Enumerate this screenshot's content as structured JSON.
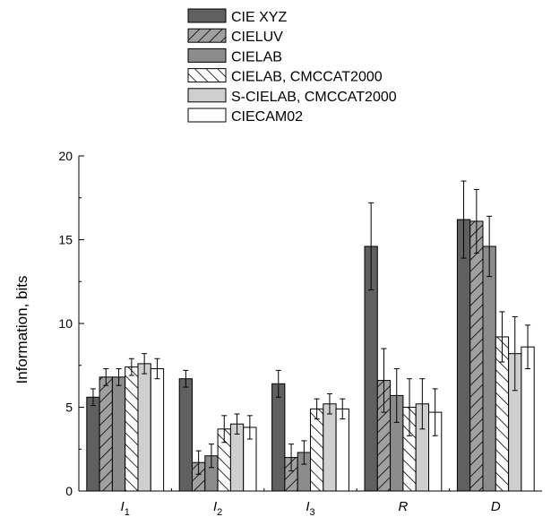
{
  "chart_data": {
    "type": "bar",
    "title": "",
    "xlabel": "",
    "ylabel": "Information, bits",
    "ylim": [
      0,
      20
    ],
    "yticks": [
      0,
      5,
      10,
      15,
      20
    ],
    "grid": false,
    "legend_position": "top-center",
    "categories": [
      {
        "main": "I",
        "sub": "1"
      },
      {
        "main": "I",
        "sub": "2"
      },
      {
        "main": "I",
        "sub": "3"
      },
      {
        "main": "R",
        "sub": ""
      },
      {
        "main": "D",
        "sub": ""
      }
    ],
    "series": [
      {
        "name": "CIE XYZ",
        "fill": "#606060",
        "pattern": "solid",
        "values": [
          5.6,
          6.7,
          6.4,
          14.6,
          16.2
        ],
        "errors": [
          0.5,
          0.5,
          0.8,
          2.6,
          2.3
        ]
      },
      {
        "name": "CIELUV",
        "fill": "#a0a0a0",
        "pattern": "backslash",
        "values": [
          6.8,
          1.7,
          2.0,
          6.6,
          16.1
        ],
        "errors": [
          0.5,
          0.7,
          0.8,
          1.9,
          1.9
        ]
      },
      {
        "name": "CIELAB",
        "fill": "#8c8c8c",
        "pattern": "solid",
        "values": [
          6.8,
          2.1,
          2.3,
          5.7,
          14.6
        ],
        "errors": [
          0.5,
          0.7,
          0.7,
          1.6,
          1.8
        ]
      },
      {
        "name": "CIELAB, CMCCAT2000",
        "fill": "#ffffff",
        "pattern": "slash",
        "values": [
          7.4,
          3.7,
          4.9,
          5.0,
          9.2
        ],
        "errors": [
          0.5,
          0.8,
          0.6,
          1.7,
          1.5
        ]
      },
      {
        "name": "S-CIELAB, CMCCAT2000",
        "fill": "#cfcfcf",
        "pattern": "solid",
        "values": [
          7.6,
          4.0,
          5.2,
          5.2,
          8.2
        ],
        "errors": [
          0.6,
          0.6,
          0.6,
          1.5,
          2.2
        ]
      },
      {
        "name": "CIECAM02",
        "fill": "#ffffff",
        "pattern": "solid",
        "values": [
          7.3,
          3.8,
          4.9,
          4.7,
          8.6
        ],
        "errors": [
          0.6,
          0.7,
          0.6,
          1.4,
          1.3
        ]
      }
    ]
  }
}
